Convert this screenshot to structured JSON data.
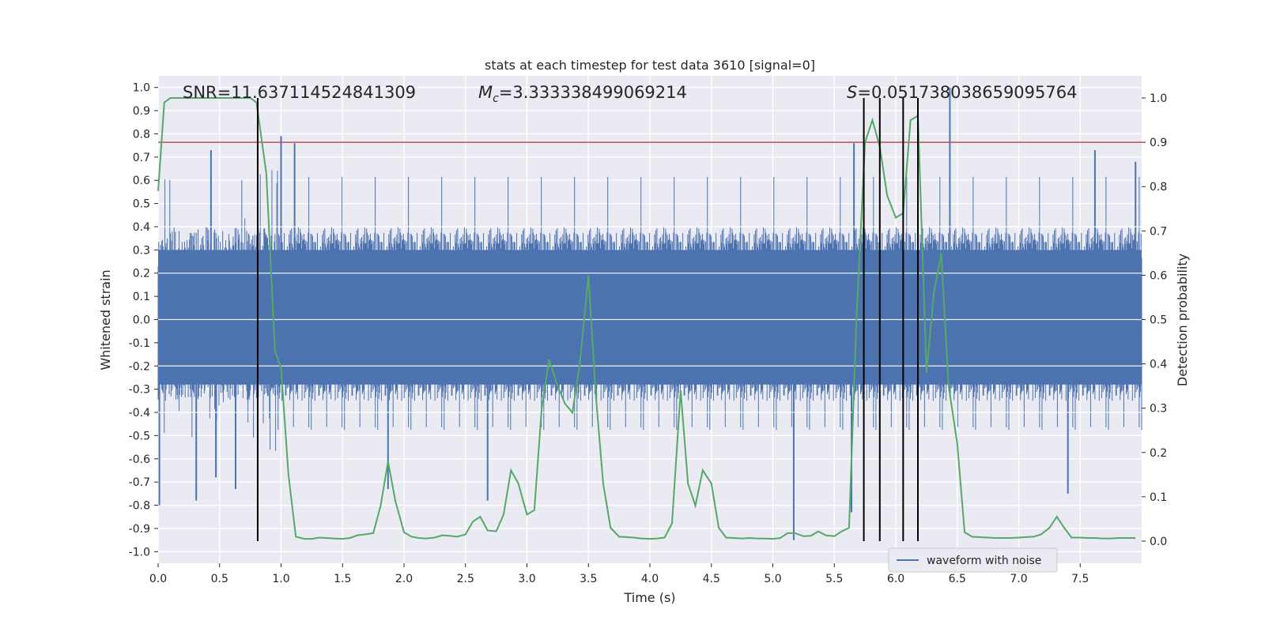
{
  "chart_data": {
    "type": "line",
    "title": "stats at each timestep for test data 3610 [signal=0]",
    "xlabel": "Time (s)",
    "ylabel": "Whitened strain",
    "ylabel_right": "Detection probability",
    "xlim": [
      0.0,
      8.0
    ],
    "ylim": [
      -1.05,
      1.05
    ],
    "ylim_right": [
      -0.05,
      1.05
    ],
    "x_ticks": [
      "0.0",
      "0.5",
      "1.0",
      "1.5",
      "2.0",
      "2.5",
      "3.0",
      "3.5",
      "4.0",
      "4.5",
      "5.0",
      "5.5",
      "6.0",
      "6.5",
      "7.0",
      "7.5"
    ],
    "y_ticks": [
      "1.0",
      "0.9",
      "0.8",
      "0.7",
      "0.6",
      "0.5",
      "0.4",
      "0.3",
      "0.2",
      "0.1",
      "0.0",
      "-0.1",
      "-0.2",
      "-0.3",
      "-0.4",
      "-0.5",
      "-0.6",
      "-0.7",
      "-0.8",
      "-0.9",
      "-1.0"
    ],
    "y_ticks_right": [
      "1.0",
      "0.9",
      "0.8",
      "0.7",
      "0.6",
      "0.5",
      "0.4",
      "0.3",
      "0.2",
      "0.1",
      "0.0"
    ],
    "annotations": {
      "snr": "SNR=11.637114524841309",
      "mc_symbol": "M",
      "mc_sub": "c",
      "mc_value": "=3.333338499069214",
      "s_symbol": "S",
      "s_value": "=0.051738038659095764"
    },
    "legend": {
      "label": "waveform with noise",
      "location": "lower right"
    },
    "grid": true,
    "threshold": {
      "value": 0.9,
      "axis": "right",
      "color": "#c44e52"
    },
    "detections": [
      0.81,
      5.74,
      5.87,
      6.06,
      6.18
    ],
    "waveform": {
      "name": "waveform with noise",
      "color": "#4c72b0",
      "x_range": [
        0.0,
        8.0
      ],
      "typical_extent": [
        -0.35,
        0.4
      ],
      "peaks": [
        {
          "x": 0.01,
          "y": -0.8
        },
        {
          "x": 0.43,
          "y": 0.73
        },
        {
          "x": 0.47,
          "y": -0.68
        },
        {
          "x": 0.31,
          "y": -0.78
        },
        {
          "x": 0.63,
          "y": -0.73
        },
        {
          "x": 1.0,
          "y": 0.79
        },
        {
          "x": 1.11,
          "y": 0.76
        },
        {
          "x": 1.87,
          "y": -0.73
        },
        {
          "x": 2.68,
          "y": -0.78
        },
        {
          "x": 5.17,
          "y": -0.95
        },
        {
          "x": 5.66,
          "y": 0.76
        },
        {
          "x": 5.64,
          "y": -0.83
        },
        {
          "x": 6.44,
          "y": 1.0
        },
        {
          "x": 7.4,
          "y": -0.75
        },
        {
          "x": 7.62,
          "y": 0.73
        },
        {
          "x": 7.95,
          "y": 0.68
        }
      ]
    },
    "series": [
      {
        "name": "Detection probability",
        "color": "#55a868",
        "axis": "right",
        "x": [
          0.0,
          0.05,
          0.1,
          0.2,
          0.3,
          0.4,
          0.5,
          0.6,
          0.7,
          0.75,
          0.8,
          0.88,
          0.95,
          1.0,
          1.06,
          1.12,
          1.19,
          1.25,
          1.31,
          1.37,
          1.43,
          1.5,
          1.56,
          1.62,
          1.68,
          1.75,
          1.81,
          1.87,
          1.93,
          2.0,
          2.06,
          2.12,
          2.18,
          2.25,
          2.31,
          2.37,
          2.43,
          2.5,
          2.56,
          2.62,
          2.68,
          2.75,
          2.81,
          2.87,
          2.93,
          3.0,
          3.06,
          3.12,
          3.18,
          3.25,
          3.31,
          3.37,
          3.43,
          3.5,
          3.56,
          3.62,
          3.68,
          3.75,
          3.81,
          3.87,
          3.93,
          4.0,
          4.06,
          4.12,
          4.18,
          4.25,
          4.31,
          4.37,
          4.43,
          4.5,
          4.56,
          4.62,
          4.68,
          4.75,
          4.81,
          4.87,
          4.93,
          5.0,
          5.06,
          5.12,
          5.18,
          5.25,
          5.31,
          5.37,
          5.43,
          5.5,
          5.56,
          5.62,
          5.68,
          5.75,
          5.81,
          5.87,
          5.93,
          6.0,
          6.06,
          6.12,
          6.18,
          6.25,
          6.31,
          6.37,
          6.43,
          6.5,
          6.56,
          6.62,
          6.68,
          6.75,
          6.81,
          6.87,
          6.93,
          7.0,
          7.06,
          7.12,
          7.18,
          7.25,
          7.31,
          7.37,
          7.43,
          7.5,
          7.56,
          7.62,
          7.68,
          7.75,
          7.81,
          7.87,
          7.95
        ],
        "y": [
          0.79,
          0.99,
          1.0,
          1.0,
          1.0,
          1.0,
          1.0,
          1.0,
          1.0,
          1.0,
          0.99,
          0.83,
          0.43,
          0.39,
          0.15,
          0.01,
          0.005,
          0.005,
          0.008,
          0.007,
          0.006,
          0.005,
          0.007,
          0.013,
          0.015,
          0.018,
          0.08,
          0.18,
          0.09,
          0.02,
          0.01,
          0.007,
          0.006,
          0.008,
          0.013,
          0.012,
          0.01,
          0.015,
          0.044,
          0.055,
          0.024,
          0.022,
          0.06,
          0.16,
          0.13,
          0.06,
          0.07,
          0.3,
          0.41,
          0.35,
          0.31,
          0.29,
          0.4,
          0.6,
          0.33,
          0.13,
          0.03,
          0.01,
          0.009,
          0.008,
          0.006,
          0.005,
          0.006,
          0.008,
          0.04,
          0.34,
          0.13,
          0.08,
          0.16,
          0.13,
          0.03,
          0.008,
          0.007,
          0.006,
          0.007,
          0.006,
          0.006,
          0.005,
          0.007,
          0.018,
          0.018,
          0.011,
          0.012,
          0.022,
          0.013,
          0.011,
          0.022,
          0.03,
          0.5,
          0.9,
          0.95,
          0.89,
          0.78,
          0.73,
          0.74,
          0.95,
          0.96,
          0.38,
          0.56,
          0.65,
          0.35,
          0.22,
          0.02,
          0.01,
          0.009,
          0.008,
          0.007,
          0.007,
          0.007,
          0.008,
          0.009,
          0.01,
          0.015,
          0.03,
          0.055,
          0.03,
          0.008,
          0.008,
          0.007,
          0.007,
          0.006,
          0.006,
          0.007,
          0.007,
          0.007
        ]
      }
    ]
  }
}
